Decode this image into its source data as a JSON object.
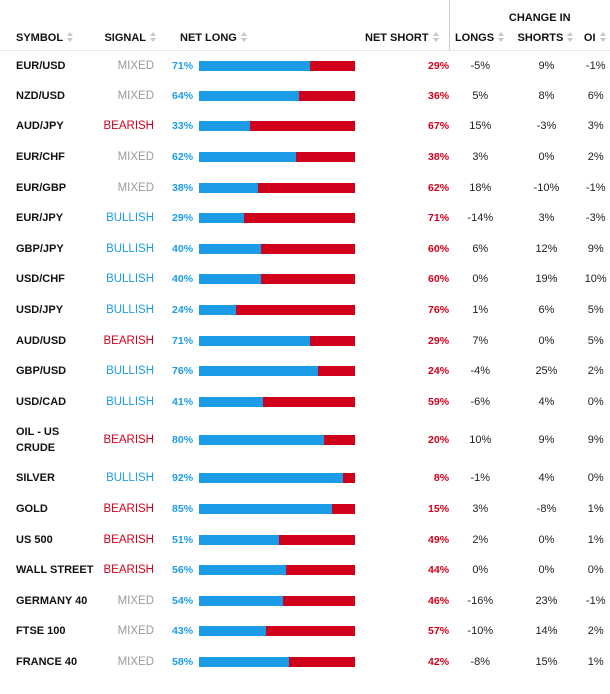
{
  "colors": {
    "long": "#1c9ce6",
    "short": "#d0021b",
    "mixed": "#9b9b9b"
  },
  "header": {
    "group_label": "CHANGE IN",
    "columns": {
      "symbol": "SYMBOL",
      "signal": "SIGNAL",
      "net_long": "NET LONG",
      "net_short": "NET SHORT",
      "longs": "LONGS",
      "shorts": "SHORTS",
      "oi": "OI"
    },
    "sort_icon": "sort-arrows-icon"
  },
  "rows": [
    {
      "symbol": "EUR/USD",
      "signal": "MIXED",
      "net_long": 71,
      "net_short": 29,
      "longs": "-5%",
      "shorts": "9%",
      "oi": "-1%"
    },
    {
      "symbol": "NZD/USD",
      "signal": "MIXED",
      "net_long": 64,
      "net_short": 36,
      "longs": "5%",
      "shorts": "8%",
      "oi": "6%"
    },
    {
      "symbol": "AUD/JPY",
      "signal": "BEARISH",
      "net_long": 33,
      "net_short": 67,
      "longs": "15%",
      "shorts": "-3%",
      "oi": "3%"
    },
    {
      "symbol": "EUR/CHF",
      "signal": "MIXED",
      "net_long": 62,
      "net_short": 38,
      "longs": "3%",
      "shorts": "0%",
      "oi": "2%"
    },
    {
      "symbol": "EUR/GBP",
      "signal": "MIXED",
      "net_long": 38,
      "net_short": 62,
      "longs": "18%",
      "shorts": "-10%",
      "oi": "-1%"
    },
    {
      "symbol": "EUR/JPY",
      "signal": "BULLISH",
      "net_long": 29,
      "net_short": 71,
      "longs": "-14%",
      "shorts": "3%",
      "oi": "-3%"
    },
    {
      "symbol": "GBP/JPY",
      "signal": "BULLISH",
      "net_long": 40,
      "net_short": 60,
      "longs": "6%",
      "shorts": "12%",
      "oi": "9%"
    },
    {
      "symbol": "USD/CHF",
      "signal": "BULLISH",
      "net_long": 40,
      "net_short": 60,
      "longs": "0%",
      "shorts": "19%",
      "oi": "10%"
    },
    {
      "symbol": "USD/JPY",
      "signal": "BULLISH",
      "net_long": 24,
      "net_short": 76,
      "longs": "1%",
      "shorts": "6%",
      "oi": "5%"
    },
    {
      "symbol": "AUD/USD",
      "signal": "BEARISH",
      "net_long": 71,
      "net_short": 29,
      "longs": "7%",
      "shorts": "0%",
      "oi": "5%"
    },
    {
      "symbol": "GBP/USD",
      "signal": "BULLISH",
      "net_long": 76,
      "net_short": 24,
      "longs": "-4%",
      "shorts": "25%",
      "oi": "2%"
    },
    {
      "symbol": "USD/CAD",
      "signal": "BULLISH",
      "net_long": 41,
      "net_short": 59,
      "longs": "-6%",
      "shorts": "4%",
      "oi": "0%"
    },
    {
      "symbol": "OIL - US CRUDE",
      "signal": "BEARISH",
      "net_long": 80,
      "net_short": 20,
      "longs": "10%",
      "shorts": "9%",
      "oi": "9%"
    },
    {
      "symbol": "SILVER",
      "signal": "BULLISH",
      "net_long": 92,
      "net_short": 8,
      "longs": "-1%",
      "shorts": "4%",
      "oi": "0%"
    },
    {
      "symbol": "GOLD",
      "signal": "BEARISH",
      "net_long": 85,
      "net_short": 15,
      "longs": "3%",
      "shorts": "-8%",
      "oi": "1%"
    },
    {
      "symbol": "US 500",
      "signal": "BEARISH",
      "net_long": 51,
      "net_short": 49,
      "longs": "2%",
      "shorts": "0%",
      "oi": "1%"
    },
    {
      "symbol": "WALL STREET",
      "signal": "BEARISH",
      "net_long": 56,
      "net_short": 44,
      "longs": "0%",
      "shorts": "0%",
      "oi": "0%"
    },
    {
      "symbol": "GERMANY 40",
      "signal": "MIXED",
      "net_long": 54,
      "net_short": 46,
      "longs": "-16%",
      "shorts": "23%",
      "oi": "-1%"
    },
    {
      "symbol": "FTSE 100",
      "signal": "MIXED",
      "net_long": 43,
      "net_short": 57,
      "longs": "-10%",
      "shorts": "14%",
      "oi": "2%"
    },
    {
      "symbol": "FRANCE 40",
      "signal": "MIXED",
      "net_long": 58,
      "net_short": 42,
      "longs": "-8%",
      "shorts": "15%",
      "oi": "1%"
    }
  ]
}
